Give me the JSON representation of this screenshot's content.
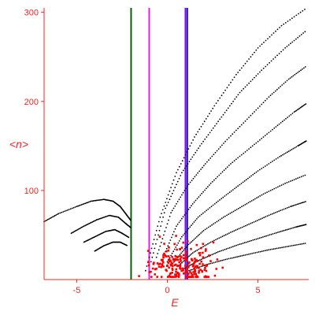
{
  "chart_data": {
    "type": "scatter",
    "xlabel": "E",
    "ylabel": "<n>",
    "xlim": [
      -6.8,
      7.8
    ],
    "ylim": [
      0,
      305
    ],
    "x_ticks": [
      -5,
      0,
      5
    ],
    "x_tick_labels": [
      "-5",
      "0",
      "5"
    ],
    "y_ticks": [
      100,
      200,
      300
    ],
    "y_tick_labels": [
      "100",
      "200",
      "300"
    ],
    "grid": false,
    "axis_color": "#ff2020",
    "vertical_lines": [
      {
        "x": -2.0,
        "color": "#006400"
      },
      {
        "x": -1.0,
        "color": "#e020e0"
      },
      {
        "x": 1.0,
        "color": "#8000ff"
      },
      {
        "x": 1.1,
        "color": "#1515cc"
      }
    ],
    "black_families": [
      {
        "points": [
          [
            -1.2,
            10
          ],
          [
            -0.4,
            70
          ],
          [
            0.5,
            120
          ],
          [
            1.5,
            160
          ],
          [
            2.6,
            195
          ],
          [
            3.8,
            230
          ],
          [
            5.0,
            260
          ],
          [
            6.3,
            285
          ],
          [
            7.7,
            305
          ]
        ]
      },
      {
        "points": [
          [
            -0.9,
            20
          ],
          [
            -0.1,
            80
          ],
          [
            0.8,
            120
          ],
          [
            1.8,
            150
          ],
          [
            2.9,
            180
          ],
          [
            4.0,
            210
          ],
          [
            5.2,
            235
          ],
          [
            6.5,
            260
          ],
          [
            7.7,
            280
          ]
        ]
      },
      {
        "points": [
          [
            -0.6,
            25
          ],
          [
            0.2,
            75
          ],
          [
            1.1,
            105
          ],
          [
            2.1,
            130
          ],
          [
            3.2,
            155
          ],
          [
            4.4,
            180
          ],
          [
            5.6,
            205
          ],
          [
            6.7,
            225
          ],
          [
            7.7,
            240
          ]
        ]
      },
      {
        "points": [
          [
            -0.3,
            22
          ],
          [
            0.5,
            60
          ],
          [
            1.4,
            85
          ],
          [
            2.4,
            108
          ],
          [
            3.5,
            130
          ],
          [
            4.7,
            150
          ],
          [
            5.9,
            170
          ],
          [
            7.0,
            188
          ],
          [
            7.7,
            198
          ]
        ]
      },
      {
        "points": [
          [
            0.0,
            20
          ],
          [
            0.8,
            48
          ],
          [
            1.7,
            70
          ],
          [
            2.8,
            88
          ],
          [
            3.9,
            105
          ],
          [
            5.0,
            122
          ],
          [
            6.2,
            138
          ],
          [
            7.2,
            150
          ],
          [
            7.7,
            156
          ]
        ]
      },
      {
        "points": [
          [
            0.3,
            18
          ],
          [
            1.1,
            38
          ],
          [
            2.0,
            55
          ],
          [
            3.1,
            70
          ],
          [
            4.2,
            83
          ],
          [
            5.3,
            96
          ],
          [
            6.5,
            108
          ],
          [
            7.7,
            118
          ]
        ]
      },
      {
        "points": [
          [
            0.6,
            15
          ],
          [
            1.4,
            30
          ],
          [
            2.4,
            42
          ],
          [
            3.5,
            53
          ],
          [
            4.6,
            63
          ],
          [
            5.7,
            73
          ],
          [
            6.8,
            82
          ],
          [
            7.7,
            88
          ]
        ]
      },
      {
        "points": [
          [
            0.9,
            12
          ],
          [
            1.8,
            22
          ],
          [
            2.8,
            31
          ],
          [
            3.9,
            39
          ],
          [
            5.0,
            46
          ],
          [
            6.1,
            53
          ],
          [
            7.1,
            59
          ],
          [
            7.7,
            62
          ]
        ]
      },
      {
        "points": [
          [
            1.2,
            10
          ],
          [
            2.2,
            17
          ],
          [
            3.3,
            23
          ],
          [
            4.4,
            28
          ],
          [
            5.5,
            33
          ],
          [
            6.6,
            37
          ],
          [
            7.7,
            41
          ]
        ]
      },
      {
        "points": [
          [
            -6.8,
            65
          ],
          [
            -6.0,
            74
          ],
          [
            -5.0,
            82
          ],
          [
            -4.2,
            88
          ],
          [
            -3.5,
            90
          ],
          [
            -3.0,
            88
          ],
          [
            -2.6,
            82
          ],
          [
            -2.3,
            74
          ],
          [
            -2.0,
            66
          ]
        ]
      },
      {
        "points": [
          [
            -5.3,
            52
          ],
          [
            -4.6,
            60
          ],
          [
            -3.9,
            67
          ],
          [
            -3.2,
            72
          ],
          [
            -2.7,
            70
          ],
          [
            -2.3,
            63
          ],
          [
            -2.0,
            58
          ]
        ]
      },
      {
        "points": [
          [
            -4.6,
            42
          ],
          [
            -4.0,
            48
          ],
          [
            -3.4,
            54
          ],
          [
            -2.9,
            56
          ],
          [
            -2.5,
            52
          ],
          [
            -2.1,
            47
          ]
        ]
      },
      {
        "points": [
          [
            -4.0,
            32
          ],
          [
            -3.5,
            38
          ],
          [
            -3.0,
            42
          ],
          [
            -2.6,
            42
          ],
          [
            -2.2,
            38
          ]
        ]
      }
    ],
    "red_cluster": {
      "center": [
        0.8,
        15
      ],
      "spread": [
        0.9,
        12
      ],
      "count": 220,
      "color": "#ff0000"
    }
  }
}
